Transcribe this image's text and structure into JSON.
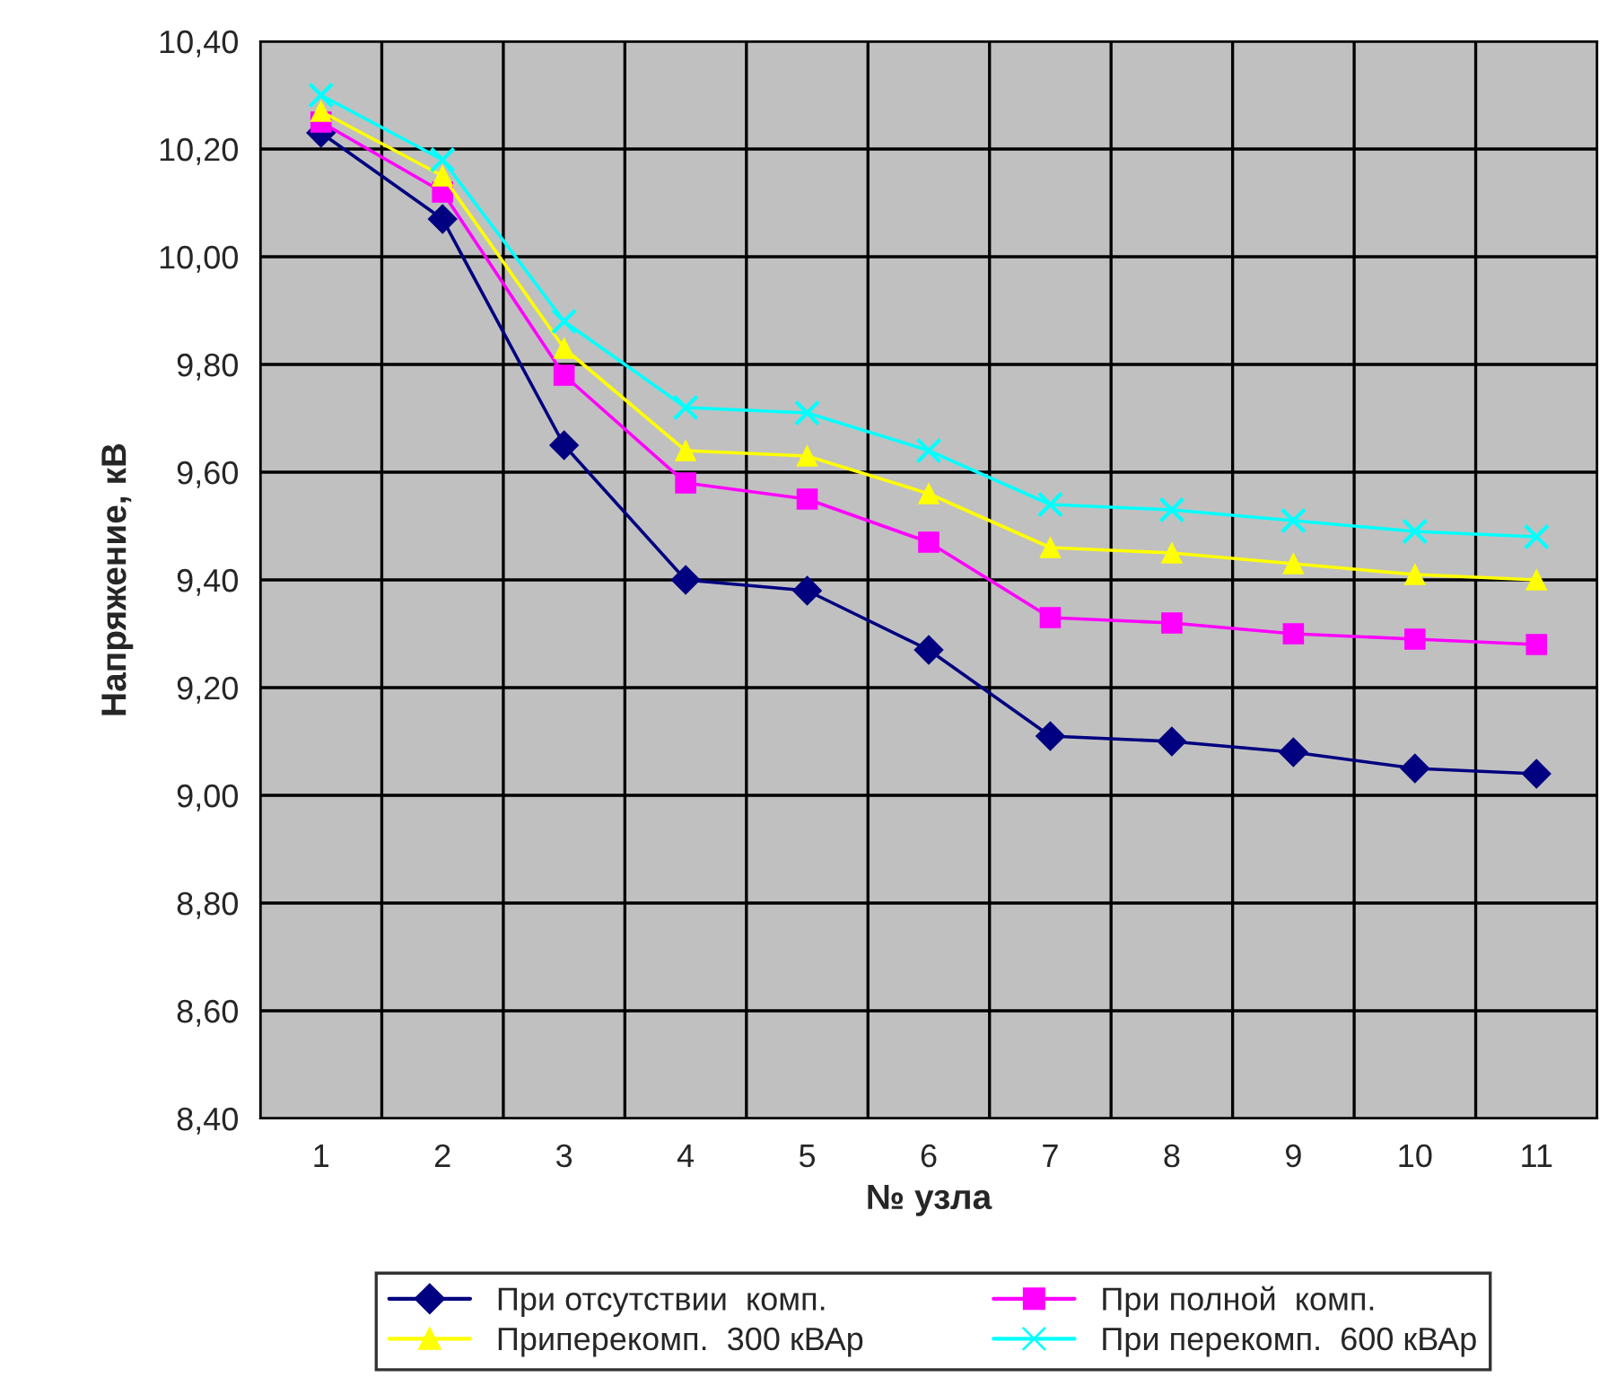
{
  "chart_data": {
    "type": "line",
    "xlabel": "№ узла",
    "ylabel": "Напряжение, кВ",
    "categories": [
      "1",
      "2",
      "3",
      "4",
      "5",
      "6",
      "7",
      "8",
      "9",
      "10",
      "11"
    ],
    "series": [
      {
        "name": "При отсутствии  комп.",
        "color": "#000080",
        "marker": "diamond",
        "values": [
          10.23,
          10.07,
          9.65,
          9.4,
          9.38,
          9.27,
          9.11,
          9.1,
          9.08,
          9.05,
          9.04
        ]
      },
      {
        "name": "При полной  комп.",
        "color": "#ff00ff",
        "marker": "square",
        "values": [
          10.25,
          10.12,
          9.78,
          9.58,
          9.55,
          9.47,
          9.33,
          9.32,
          9.3,
          9.29,
          9.28
        ]
      },
      {
        "name": "Приперекомп.  300 кВАр",
        "color": "#ffff00",
        "marker": "triangle",
        "values": [
          10.27,
          10.15,
          9.83,
          9.64,
          9.63,
          9.56,
          9.46,
          9.45,
          9.43,
          9.41,
          9.4
        ]
      },
      {
        "name": "При перекомп.  600 кВАр",
        "color": "#00ffff",
        "marker": "cross",
        "values": [
          10.3,
          10.18,
          9.88,
          9.72,
          9.71,
          9.64,
          9.54,
          9.53,
          9.51,
          9.49,
          9.48
        ]
      }
    ],
    "ylim": [
      8.4,
      10.4
    ],
    "yticks": [
      {
        "value": 8.4,
        "label": "8,40"
      },
      {
        "value": 8.6,
        "label": "8,60"
      },
      {
        "value": 8.8,
        "label": "8,80"
      },
      {
        "value": 9.0,
        "label": "9,00"
      },
      {
        "value": 9.2,
        "label": "9,20"
      },
      {
        "value": 9.4,
        "label": "9,40"
      },
      {
        "value": 9.6,
        "label": "9,60"
      },
      {
        "value": 9.8,
        "label": "9,80"
      },
      {
        "value": 10.0,
        "label": "10,00"
      },
      {
        "value": 10.2,
        "label": "10,20"
      },
      {
        "value": 10.4,
        "label": "10,40"
      }
    ],
    "grid": true,
    "legend": "bottom",
    "line_style": "solid"
  }
}
